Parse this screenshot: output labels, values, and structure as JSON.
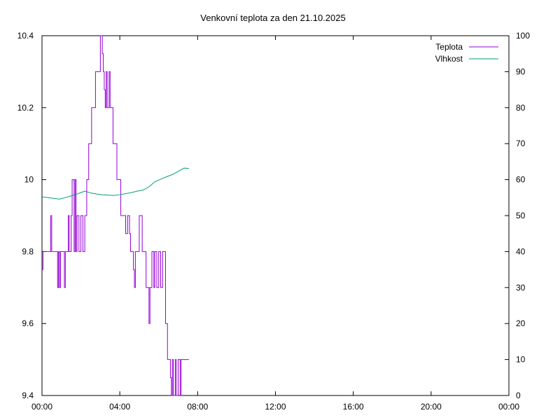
{
  "chart_data": {
    "type": "line",
    "title": "Venkovní teplota za den 21.10.2025",
    "x_ticks": [
      "00:00",
      "04:00",
      "08:00",
      "12:00",
      "16:00",
      "20:00",
      "00:00"
    ],
    "x_range_hours": [
      0,
      24
    ],
    "y_left": {
      "range": [
        9.4,
        10.4
      ],
      "ticks": [
        "9.4",
        "9.6",
        "9.8",
        "10",
        "10.2",
        "10.4"
      ]
    },
    "y_right": {
      "range": [
        0,
        100
      ],
      "ticks": [
        "0",
        "10",
        "20",
        "30",
        "40",
        "50",
        "60",
        "70",
        "80",
        "90",
        "100"
      ]
    },
    "grid": false,
    "legend_position": "top-right",
    "series": [
      {
        "name": "Teplota",
        "axis": "left",
        "color": "#9400d3",
        "step": true,
        "points": [
          [
            0.0,
            9.75
          ],
          [
            0.05,
            9.8
          ],
          [
            0.45,
            9.8
          ],
          [
            0.45,
            9.9
          ],
          [
            0.5,
            9.9
          ],
          [
            0.5,
            9.8
          ],
          [
            0.75,
            9.8
          ],
          [
            0.8,
            9.7
          ],
          [
            0.85,
            9.8
          ],
          [
            0.9,
            9.8
          ],
          [
            0.9,
            9.7
          ],
          [
            0.95,
            9.8
          ],
          [
            1.1,
            9.8
          ],
          [
            1.15,
            9.7
          ],
          [
            1.2,
            9.8
          ],
          [
            1.3,
            9.8
          ],
          [
            1.35,
            9.9
          ],
          [
            1.4,
            9.8
          ],
          [
            1.5,
            9.9
          ],
          [
            1.55,
            10.0
          ],
          [
            1.65,
            9.8
          ],
          [
            1.7,
            10.0
          ],
          [
            1.75,
            9.8
          ],
          [
            1.8,
            9.9
          ],
          [
            1.9,
            9.8
          ],
          [
            2.0,
            9.9
          ],
          [
            2.1,
            9.8
          ],
          [
            2.2,
            9.9
          ],
          [
            2.3,
            10.0
          ],
          [
            2.4,
            10.1
          ],
          [
            2.5,
            10.1
          ],
          [
            2.55,
            10.2
          ],
          [
            2.7,
            10.2
          ],
          [
            2.75,
            10.3
          ],
          [
            2.95,
            10.3
          ],
          [
            3.0,
            10.4
          ],
          [
            3.05,
            10.4
          ],
          [
            3.1,
            10.35
          ],
          [
            3.15,
            10.3
          ],
          [
            3.2,
            10.25
          ],
          [
            3.25,
            10.2
          ],
          [
            3.3,
            10.3
          ],
          [
            3.35,
            10.2
          ],
          [
            3.45,
            10.3
          ],
          [
            3.5,
            10.2
          ],
          [
            3.6,
            10.2
          ],
          [
            3.65,
            10.1
          ],
          [
            3.8,
            10.1
          ],
          [
            3.85,
            10.0
          ],
          [
            4.0,
            10.0
          ],
          [
            4.05,
            9.9
          ],
          [
            4.25,
            9.9
          ],
          [
            4.3,
            9.85
          ],
          [
            4.4,
            9.9
          ],
          [
            4.5,
            9.85
          ],
          [
            4.55,
            9.8
          ],
          [
            4.65,
            9.8
          ],
          [
            4.7,
            9.75
          ],
          [
            4.75,
            9.7
          ],
          [
            4.8,
            9.8
          ],
          [
            4.9,
            9.8
          ],
          [
            5.0,
            9.9
          ],
          [
            5.1,
            9.9
          ],
          [
            5.15,
            9.8
          ],
          [
            5.3,
            9.8
          ],
          [
            5.35,
            9.7
          ],
          [
            5.45,
            9.7
          ],
          [
            5.5,
            9.6
          ],
          [
            5.55,
            9.7
          ],
          [
            5.6,
            9.7
          ],
          [
            5.65,
            9.8
          ],
          [
            5.75,
            9.7
          ],
          [
            5.8,
            9.8
          ],
          [
            5.9,
            9.7
          ],
          [
            6.0,
            9.8
          ],
          [
            6.1,
            9.7
          ],
          [
            6.2,
            9.8
          ],
          [
            6.3,
            9.8
          ],
          [
            6.35,
            9.6
          ],
          [
            6.45,
            9.5
          ],
          [
            6.55,
            9.5
          ],
          [
            6.6,
            9.45
          ],
          [
            6.65,
            9.4
          ],
          [
            6.7,
            9.5
          ],
          [
            6.75,
            9.4
          ],
          [
            6.85,
            9.5
          ],
          [
            6.9,
            9.4
          ],
          [
            7.0,
            9.5
          ],
          [
            7.1,
            9.4
          ],
          [
            7.15,
            9.5
          ],
          [
            7.55,
            9.5
          ]
        ]
      },
      {
        "name": "Vlhkost",
        "axis": "right",
        "color": "#009e73",
        "step": false,
        "points": [
          [
            0.0,
            55.2
          ],
          [
            0.3,
            55.0
          ],
          [
            0.6,
            54.8
          ],
          [
            0.9,
            54.6
          ],
          [
            1.2,
            55.0
          ],
          [
            1.5,
            55.5
          ],
          [
            1.8,
            56.0
          ],
          [
            2.0,
            56.4
          ],
          [
            2.2,
            56.8
          ],
          [
            2.5,
            56.3
          ],
          [
            2.8,
            56.0
          ],
          [
            3.1,
            55.8
          ],
          [
            3.4,
            55.7
          ],
          [
            3.7,
            55.6
          ],
          [
            4.0,
            55.8
          ],
          [
            4.3,
            56.1
          ],
          [
            4.6,
            56.4
          ],
          [
            4.9,
            56.8
          ],
          [
            5.2,
            57.1
          ],
          [
            5.5,
            58.0
          ],
          [
            5.8,
            59.4
          ],
          [
            6.1,
            60.1
          ],
          [
            6.4,
            60.8
          ],
          [
            6.7,
            61.4
          ],
          [
            7.0,
            62.3
          ],
          [
            7.3,
            63.2
          ],
          [
            7.55,
            63.1
          ]
        ]
      }
    ]
  }
}
